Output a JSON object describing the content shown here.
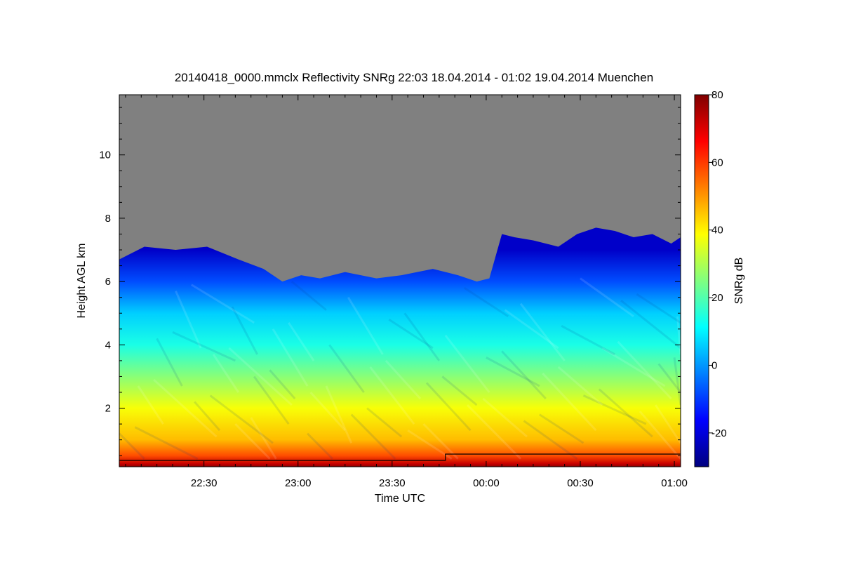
{
  "chart_data": {
    "type": "heatmap",
    "title": "20140418_0000.mmclx Reflectivity SNRg   22:03 18.04.2014 - 01:02 19.04.2014 Muenchen",
    "xlabel": "Time UTC",
    "ylabel": "Height AGL km",
    "x_ticks": [
      "22:30",
      "23:00",
      "23:30",
      "00:00",
      "00:30",
      "01:00"
    ],
    "x_tick_minutes": [
      27,
      57,
      87,
      117,
      147,
      177
    ],
    "xlim_minutes": [
      0,
      179
    ],
    "y_ticks": [
      "2",
      "4",
      "6",
      "8",
      "10"
    ],
    "y_tick_values": [
      2,
      4,
      6,
      8,
      10
    ],
    "ylim": [
      0.15,
      11.9
    ],
    "colorbar": {
      "label": "SNRg dB",
      "ticks": [
        "80",
        "60",
        "40",
        "20",
        "0",
        "-20"
      ],
      "tick_values": [
        80,
        60,
        40,
        20,
        0,
        -20
      ],
      "range": [
        -30,
        80
      ],
      "colormap": [
        "#00007f",
        "#0000ff",
        "#0080ff",
        "#00ffff",
        "#80ff80",
        "#ffff00",
        "#ff8000",
        "#ff0000",
        "#7f0000"
      ]
    },
    "no_signal_color": "#808080",
    "echo_top": {
      "time_minutes": [
        0,
        8,
        18,
        28,
        38,
        46,
        52,
        58,
        64,
        72,
        82,
        90,
        100,
        108,
        114,
        118,
        122,
        126,
        132,
        140,
        146,
        152,
        158,
        164,
        170,
        176,
        179
      ],
      "height_km": [
        6.7,
        7.1,
        7.0,
        7.1,
        6.7,
        6.4,
        6.0,
        6.2,
        6.1,
        6.3,
        6.1,
        6.2,
        6.4,
        6.2,
        6.0,
        6.1,
        7.5,
        7.4,
        7.3,
        7.1,
        7.5,
        7.7,
        7.6,
        7.4,
        7.5,
        7.2,
        7.4
      ]
    },
    "signal_levels": [
      {
        "height_km": 0.25,
        "snr_db": 72
      },
      {
        "height_km": 0.5,
        "snr_db": 58
      },
      {
        "height_km": 1.0,
        "snr_db": 46
      },
      {
        "height_km": 2.0,
        "snr_db": 38
      },
      {
        "height_km": 3.0,
        "snr_db": 26
      },
      {
        "height_km": 4.0,
        "snr_db": 14
      },
      {
        "height_km": 5.0,
        "snr_db": 6
      },
      {
        "height_km": 6.0,
        "snr_db": -8
      },
      {
        "height_km": 7.0,
        "snr_db": -22
      }
    ],
    "threshold_line": {
      "time_minutes": [
        0,
        104,
        104,
        179
      ],
      "height_km": [
        0.35,
        0.35,
        0.55,
        0.55
      ]
    }
  }
}
